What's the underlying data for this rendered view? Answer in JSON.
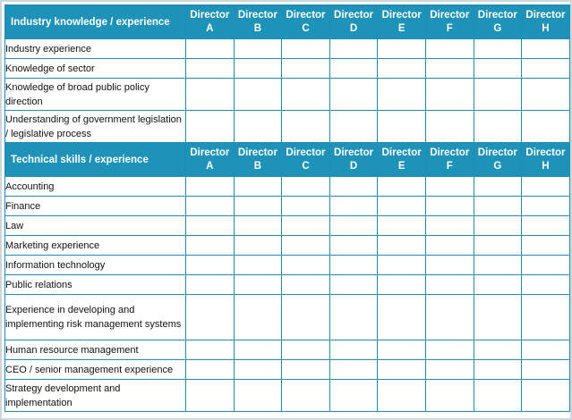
{
  "sections": [
    {
      "title": "Industry knowledge / experience",
      "directors": [
        {
          "line1": "Director",
          "line2": "A"
        },
        {
          "line1": "Director",
          "line2": "B"
        },
        {
          "line1": "Director",
          "line2": "C"
        },
        {
          "line1": "Director",
          "line2": "D"
        },
        {
          "line1": "Director",
          "line2": "E"
        },
        {
          "line1": "Director",
          "line2": "F"
        },
        {
          "line1": "Director",
          "line2": "G"
        },
        {
          "line1": "Director",
          "line2": "H"
        }
      ],
      "rows": [
        "Industry experience",
        "Knowledge of sector",
        "Knowledge of broad public policy direction",
        "Understanding of government legislation / legislative process"
      ]
    },
    {
      "title": "Technical skills / experience",
      "directors": [
        {
          "line1": "Director",
          "line2": "A"
        },
        {
          "line1": "Director",
          "line2": "B"
        },
        {
          "line1": "Director",
          "line2": "C"
        },
        {
          "line1": "Director",
          "line2": "D"
        },
        {
          "line1": "Director",
          "line2": "E"
        },
        {
          "line1": "Director",
          "line2": "F"
        },
        {
          "line1": "Director",
          "line2": "G"
        },
        {
          "line1": "Director",
          "line2": "H"
        }
      ],
      "rows": [
        "Accounting",
        "Finance",
        "Law",
        "Marketing experience",
        "Information technology",
        "Public relations",
        "Experience in developing and implementing risk management systems",
        "Human resource management",
        "CEO / senior management experience",
        "Strategy development and implementation"
      ]
    }
  ],
  "colors": {
    "header_bg": "#1e92b8",
    "grid_line": "#1e8fb4",
    "frame": "#cfd6db"
  }
}
